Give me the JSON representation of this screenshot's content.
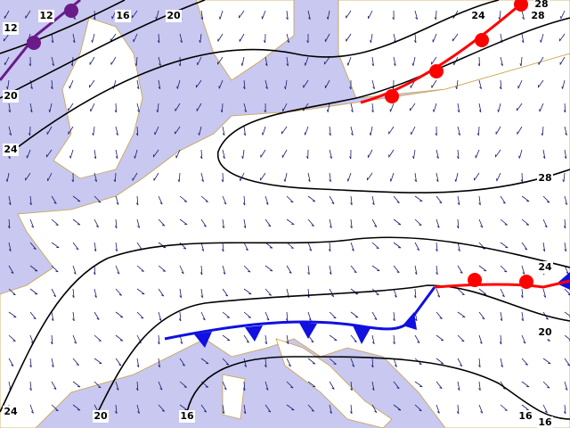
{
  "contours": {
    "labels": [
      "12",
      "12",
      "16",
      "20",
      "24",
      "28",
      "28",
      "20",
      "24",
      "28",
      "24",
      "20",
      "16",
      "16",
      "24",
      "20",
      "16"
    ]
  }
}
